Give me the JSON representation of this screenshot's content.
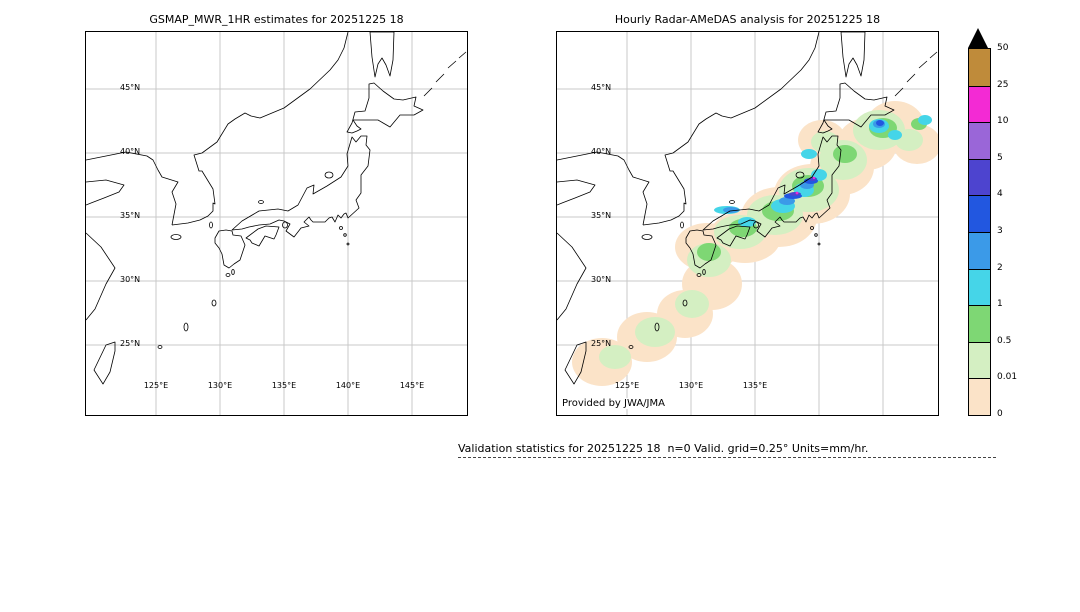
{
  "panels": {
    "left": {
      "title": "GSMAP_MWR_1HR estimates for 20251225 18",
      "lat_labels": [
        "45°N",
        "40°N",
        "35°N",
        "30°N",
        "25°N"
      ],
      "lon_labels": [
        "125°E",
        "130°E",
        "135°E",
        "140°E",
        "145°E"
      ]
    },
    "right": {
      "title": "Hourly Radar-AMeDAS analysis for 20251225 18",
      "lat_labels": [
        "45°N",
        "40°N",
        "35°N",
        "30°N",
        "25°N"
      ],
      "lon_labels": [
        "125°E",
        "130°E",
        "135°E"
      ],
      "credit": "Provided by JWA/JMA"
    }
  },
  "colorbar": {
    "tick_labels": [
      "50",
      "25",
      "10",
      "5",
      "4",
      "3",
      "2",
      "1",
      "0.5",
      "0.01",
      "0"
    ],
    "colors": [
      "#bf8b3a",
      "#f32ad4",
      "#9a66d8",
      "#4d44cf",
      "#2257e0",
      "#3b9ae8",
      "#45d5e8",
      "#7ed774",
      "#d4efc2",
      "#fbe3c8"
    ],
    "overflow_color": "#000000",
    "units": "mm/hr"
  },
  "caption": "Validation statistics for 20251225 18  n=0 Valid. grid=0.25° Units=mm/hr.",
  "chart_data": {
    "type": "heatmap",
    "title": [
      "GSMAP_MWR_1HR estimates for 20251225 18",
      "Hourly Radar-AMeDAS analysis for 20251225 18"
    ],
    "units": "mm/hr",
    "valid_grid_deg": 0.25,
    "n": 0,
    "lat_ticks": [
      45,
      40,
      35,
      30,
      25
    ],
    "lon_ticks": [
      125,
      130,
      135,
      140,
      145
    ],
    "lon_range": [
      119.5,
      149.5
    ],
    "lat_range": [
      19.5,
      49.5
    ],
    "colorbar_levels": [
      0,
      0.01,
      0.5,
      1,
      2,
      3,
      4,
      5,
      10,
      25,
      50
    ],
    "colorbar_colors_low_to_high": [
      "#fbe3c8",
      "#d4efc2",
      "#7ed774",
      "#45d5e8",
      "#3b9ae8",
      "#2257e0",
      "#4d44cf",
      "#9a66d8",
      "#f32ad4",
      "#bf8b3a"
    ],
    "panels": [
      {
        "name": "GSMAP_MWR_1HR",
        "precipitation_shown": false
      },
      {
        "name": "Radar-AMeDAS",
        "precipitation_shown": true,
        "pattern": "light precipitation band (0-1 mm/hr) from the southwest islands along the archipelago to Hokkaido, with 1-5 mm/hr cores over central Honshu and eastern Hokkaido and small >5 mm/hr specks in central Honshu"
      }
    ]
  }
}
